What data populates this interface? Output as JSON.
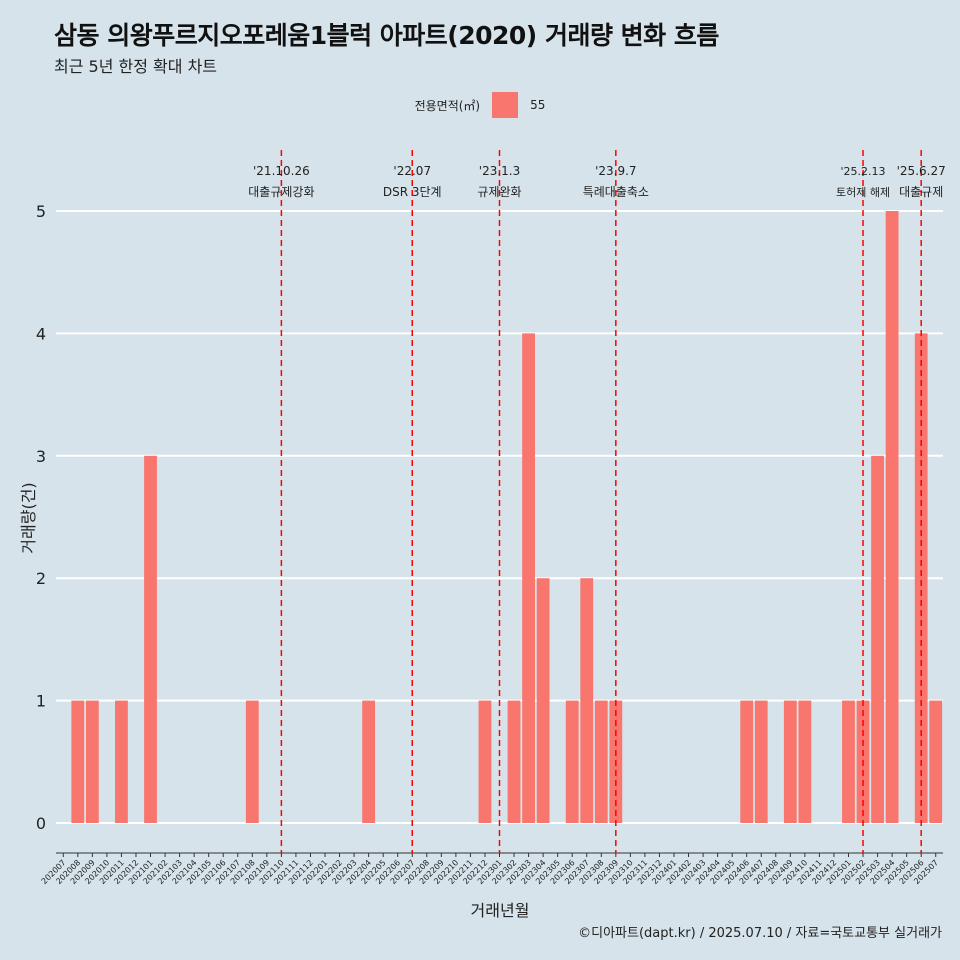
{
  "title": "삼동 의왕푸르지오포레움1블럭 아파트(2020) 거래량 변화 흐름",
  "subtitle": "최근 5년 한정 확대 차트",
  "caption": "©디아파트(dapt.kr) / 2025.07.10 / 자료=국토교통부 실거래가",
  "colors": {
    "background": "#d6e3ea",
    "bar": "#f8766d",
    "event_line": "#ff0000",
    "grid": "#ffffff"
  },
  "chart_data": {
    "type": "bar",
    "title": "삼동 의왕푸르지오포레움1블럭 아파트(2020) 거래량 변화 흐름",
    "xlabel": "거래년월",
    "ylabel": "거래량(건)",
    "ylim": [
      0,
      5
    ],
    "yticks": [
      0,
      1,
      2,
      3,
      4,
      5
    ],
    "grid": true,
    "legend": {
      "title": "전용면적(㎡)",
      "position": "top",
      "entries": [
        "55"
      ]
    },
    "categories": [
      "202007",
      "202008",
      "202009",
      "202010",
      "202011",
      "202012",
      "202101",
      "202102",
      "202103",
      "202104",
      "202105",
      "202106",
      "202107",
      "202108",
      "202109",
      "202110",
      "202111",
      "202112",
      "202201",
      "202202",
      "202203",
      "202204",
      "202205",
      "202206",
      "202207",
      "202208",
      "202209",
      "202210",
      "202211",
      "202212",
      "202301",
      "202302",
      "202303",
      "202304",
      "202305",
      "202306",
      "202307",
      "202308",
      "202309",
      "202310",
      "202311",
      "202312",
      "202401",
      "202402",
      "202403",
      "202404",
      "202405",
      "202406",
      "202407",
      "202408",
      "202409",
      "202410",
      "202411",
      "202412",
      "202501",
      "202502",
      "202503",
      "202504",
      "202505",
      "202506",
      "202507"
    ],
    "series": [
      {
        "name": "55",
        "values": [
          0,
          1,
          1,
          0,
          1,
          0,
          3,
          0,
          0,
          0,
          0,
          0,
          0,
          1,
          0,
          0,
          0,
          0,
          0,
          0,
          0,
          1,
          0,
          0,
          0,
          0,
          0,
          0,
          0,
          1,
          0,
          1,
          4,
          2,
          0,
          1,
          2,
          1,
          1,
          0,
          0,
          0,
          0,
          0,
          0,
          0,
          0,
          1,
          1,
          0,
          1,
          1,
          0,
          0,
          1,
          1,
          3,
          5,
          0,
          4,
          1
        ]
      }
    ],
    "events": [
      {
        "x": "202110",
        "date": "'21.10.26",
        "label": "대출규제강화"
      },
      {
        "x": "202207",
        "date": "'22.07",
        "label": "DSR 3단계"
      },
      {
        "x": "202301",
        "date": "'23.1.3",
        "label": "규제완화"
      },
      {
        "x": "202309",
        "date": "'23.9.7",
        "label": "특례대출축소"
      },
      {
        "x": "202502",
        "date": "'25.2.13",
        "label": "토허제 해제"
      },
      {
        "x": "202506",
        "date": "'25.6.27",
        "label": "대출규제"
      }
    ]
  }
}
